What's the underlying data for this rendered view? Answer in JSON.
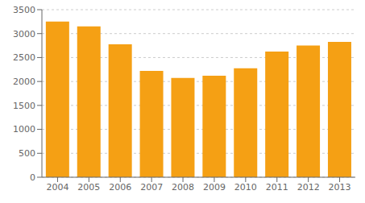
{
  "chart_data": {
    "type": "bar",
    "categories": [
      "2004",
      "2005",
      "2006",
      "2007",
      "2008",
      "2009",
      "2010",
      "2011",
      "2012",
      "2013"
    ],
    "values": [
      3250,
      3150,
      2775,
      2220,
      2075,
      2120,
      2275,
      2625,
      2750,
      2825
    ],
    "color": "#F5A014",
    "ylim": [
      0,
      3500
    ],
    "yticks": [
      0,
      500,
      1000,
      1500,
      2000,
      2500,
      3000,
      3500
    ],
    "grid": true
  }
}
